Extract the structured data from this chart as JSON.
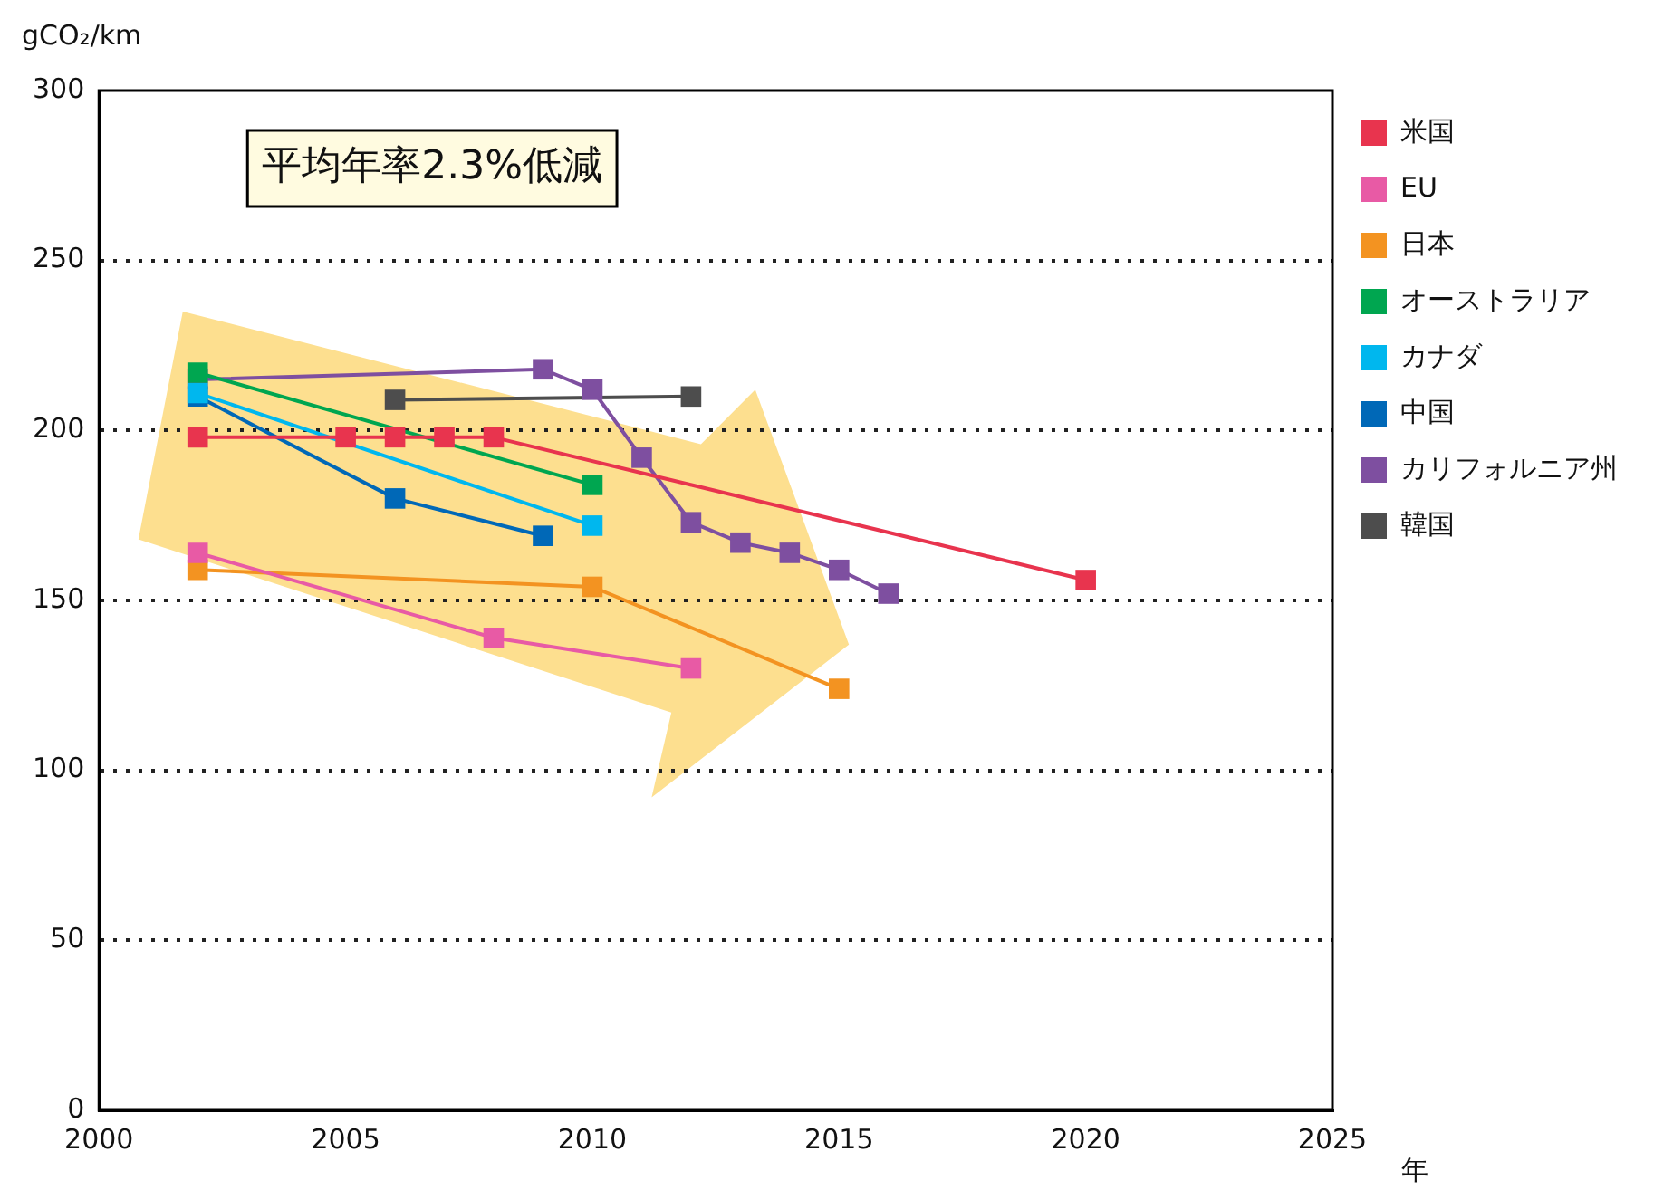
{
  "chart_data": {
    "type": "line",
    "marker": "square",
    "line_style": "solid",
    "ylabel": "gCO₂/km",
    "xlabel": "年",
    "annotations": [
      "平均年率2.3%低減"
    ],
    "xlim": [
      2000,
      2025
    ],
    "xticks": [
      2000,
      2005,
      2010,
      2015,
      2020,
      2025
    ],
    "ylim": [
      0,
      300
    ],
    "yticks": [
      0,
      50,
      100,
      150,
      200,
      250,
      300
    ],
    "grid": "y",
    "legend": "right",
    "series": [
      {
        "name": "米国",
        "color": "#e8344e",
        "x": [
          2002,
          2005,
          2006,
          2007,
          2008,
          2020
        ],
        "values": [
          198,
          198,
          198,
          198,
          198,
          156
        ]
      },
      {
        "name": "EU",
        "color": "#e85aa5",
        "x": [
          2002,
          2008,
          2012
        ],
        "values": [
          164,
          139,
          130
        ]
      },
      {
        "name": "日本",
        "color": "#f39321",
        "x": [
          2002,
          2010,
          2015
        ],
        "values": [
          159,
          154,
          124
        ]
      },
      {
        "name": "オーストラリア",
        "color": "#00a650",
        "x": [
          2002,
          2010
        ],
        "values": [
          217,
          184
        ]
      },
      {
        "name": "カナダ",
        "color": "#00b7ee",
        "x": [
          2002,
          2010
        ],
        "values": [
          211,
          172
        ]
      },
      {
        "name": "中国",
        "color": "#0068b7",
        "x": [
          2002,
          2006,
          2009
        ],
        "values": [
          210,
          180,
          169
        ]
      },
      {
        "name": "カリフォルニア州",
        "color": "#7e4fa0",
        "x": [
          2002,
          2009,
          2010,
          2011,
          2012,
          2013,
          2014,
          2015,
          2016
        ],
        "values": [
          215,
          218,
          212,
          192,
          173,
          167,
          164,
          159,
          152
        ]
      },
      {
        "name": "韓国",
        "color": "#4d4d4d",
        "x": [
          2006,
          2012
        ],
        "values": [
          209,
          210
        ]
      }
    ]
  }
}
